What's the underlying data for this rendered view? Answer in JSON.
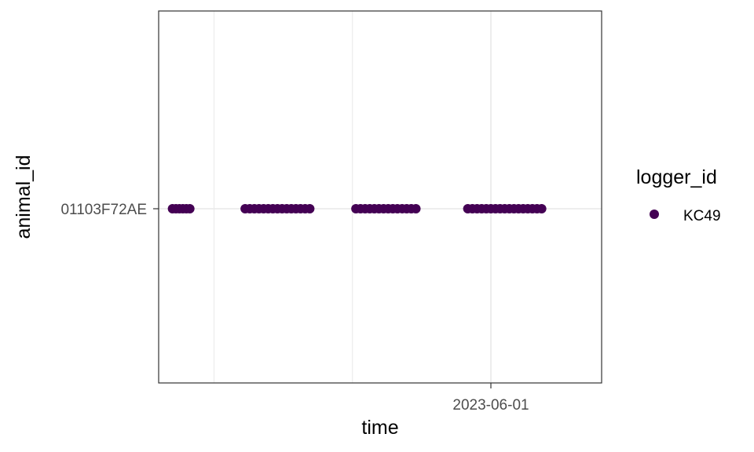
{
  "chart_data": {
    "type": "scatter",
    "xlabel": "time",
    "ylabel": "animal_id",
    "x_tick_labels": [
      "2023-06-01"
    ],
    "y_categories": [
      "01103F72AE"
    ],
    "xlim": [
      "2023-05-20",
      "2023-06-05"
    ],
    "grid": true,
    "legend": {
      "title": "logger_id",
      "position": "right",
      "entries": [
        "KC49"
      ]
    },
    "series": [
      {
        "name": "KC49",
        "color": "#440154",
        "animal_id": "01103F72AE",
        "x": [
          "2023-05-20T12:00",
          "2023-05-20T15:00",
          "2023-05-20T18:00",
          "2023-05-20T21:00",
          "2023-05-21T00:00",
          "2023-05-21T03:00",
          "2023-05-23T03:00",
          "2023-05-23T07:00",
          "2023-05-23T11:00",
          "2023-05-23T15:00",
          "2023-05-23T19:00",
          "2023-05-23T23:00",
          "2023-05-24T03:00",
          "2023-05-24T07:00",
          "2023-05-24T11:00",
          "2023-05-24T15:00",
          "2023-05-24T19:00",
          "2023-05-24T23:00",
          "2023-05-25T03:00",
          "2023-05-25T07:00",
          "2023-05-25T11:00",
          "2023-05-27T03:00",
          "2023-05-27T07:00",
          "2023-05-27T11:00",
          "2023-05-27T15:00",
          "2023-05-27T19:00",
          "2023-05-27T23:00",
          "2023-05-28T03:00",
          "2023-05-28T07:00",
          "2023-05-28T11:00",
          "2023-05-28T15:00",
          "2023-05-28T19:00",
          "2023-05-28T23:00",
          "2023-05-29T03:00",
          "2023-05-29T07:00",
          "2023-05-31T04:00",
          "2023-05-31T08:00",
          "2023-05-31T12:00",
          "2023-05-31T16:00",
          "2023-05-31T20:00",
          "2023-06-01T00:00",
          "2023-06-01T04:00",
          "2023-06-01T08:00",
          "2023-06-01T12:00",
          "2023-06-01T16:00",
          "2023-06-01T20:00",
          "2023-06-02T00:00",
          "2023-06-02T04:00",
          "2023-06-02T08:00",
          "2023-06-02T12:00",
          "2023-06-02T16:00",
          "2023-06-02T20:00"
        ]
      }
    ]
  }
}
